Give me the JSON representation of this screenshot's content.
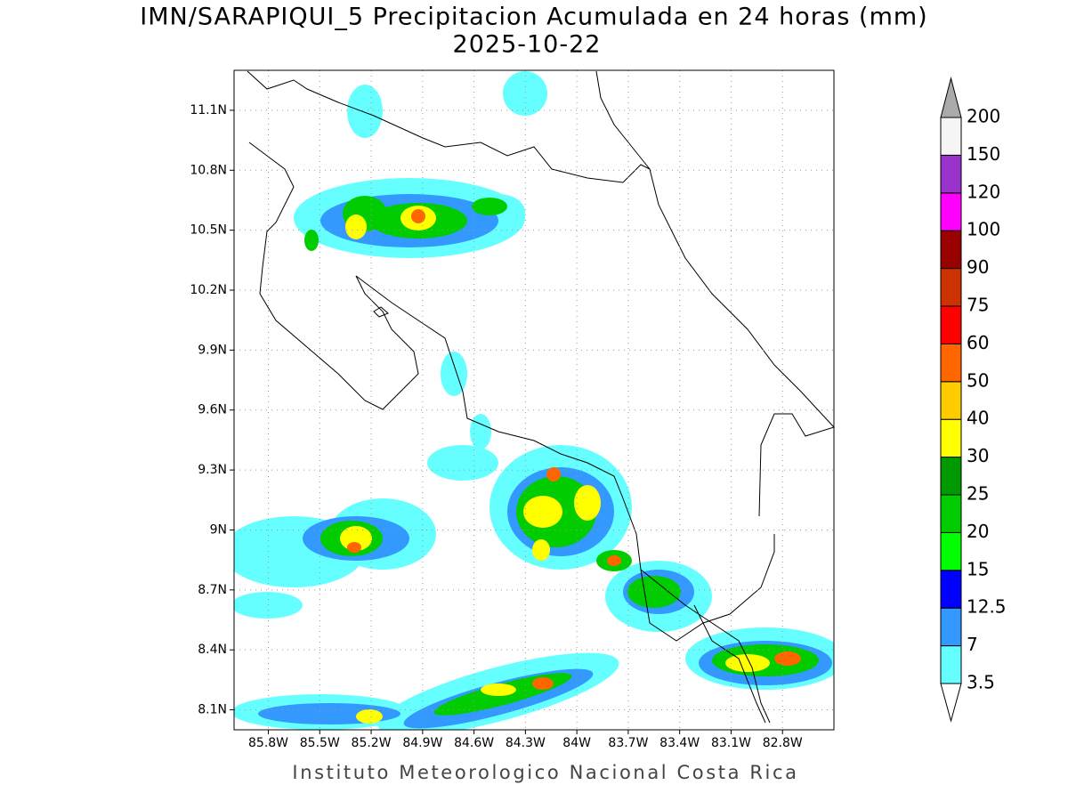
{
  "map": {
    "title": "IMN/SARAPIQUI_5 Precipitacion Acumulada en 24 horas (mm)",
    "date": "2025-10-22",
    "xlim": [
      -86,
      -82.5
    ],
    "ylim": [
      8,
      11.3
    ],
    "xticks": [
      {
        "value": -85.8,
        "label": "85.8W"
      },
      {
        "value": -85.5,
        "label": "85.5W"
      },
      {
        "value": -85.2,
        "label": "85.2W"
      },
      {
        "value": -84.9,
        "label": "84.9W"
      },
      {
        "value": -84.6,
        "label": "84.6W"
      },
      {
        "value": -84.3,
        "label": "84.3W"
      },
      {
        "value": -84,
        "label": "84W"
      },
      {
        "value": -83.7,
        "label": "83.7W"
      },
      {
        "value": -83.4,
        "label": "83.4W"
      },
      {
        "value": -83.1,
        "label": "83.1W"
      },
      {
        "value": -82.8,
        "label": "82.8W"
      }
    ],
    "yticks": [
      {
        "value": 11.1,
        "label": "11.1N"
      },
      {
        "value": 10.8,
        "label": "10.8N"
      },
      {
        "value": 10.5,
        "label": "10.5N"
      },
      {
        "value": 10.2,
        "label": "10.2N"
      },
      {
        "value": 9.9,
        "label": "9.9N"
      },
      {
        "value": 9.6,
        "label": "9.6N"
      },
      {
        "value": 9.3,
        "label": "9.3N"
      },
      {
        "value": 9,
        "label": "9N"
      },
      {
        "value": 8.7,
        "label": "8.7N"
      },
      {
        "value": 8.4,
        "label": "8.4N"
      },
      {
        "value": 8.1,
        "label": "8.1N"
      }
    ],
    "grid": true,
    "colorbar": {
      "levels": [
        3.5,
        7,
        12.5,
        15,
        20,
        25,
        30,
        40,
        50,
        60,
        75,
        90,
        100,
        120,
        150,
        200
      ],
      "colors": [
        "#66ffff",
        "#3399ff",
        "#0000ff",
        "#00ff00",
        "#00cc00",
        "#009900",
        "#ffff00",
        "#ffcc00",
        "#ff6600",
        "#ff0000",
        "#cc3300",
        "#990000",
        "#ff00ff",
        "#9933cc",
        "#f5f5f5"
      ],
      "under_color": "#ffffff",
      "over_color": "#aaaaaa"
    },
    "footer": "Instituto Meteorologico Nacional Costa Rica"
  }
}
